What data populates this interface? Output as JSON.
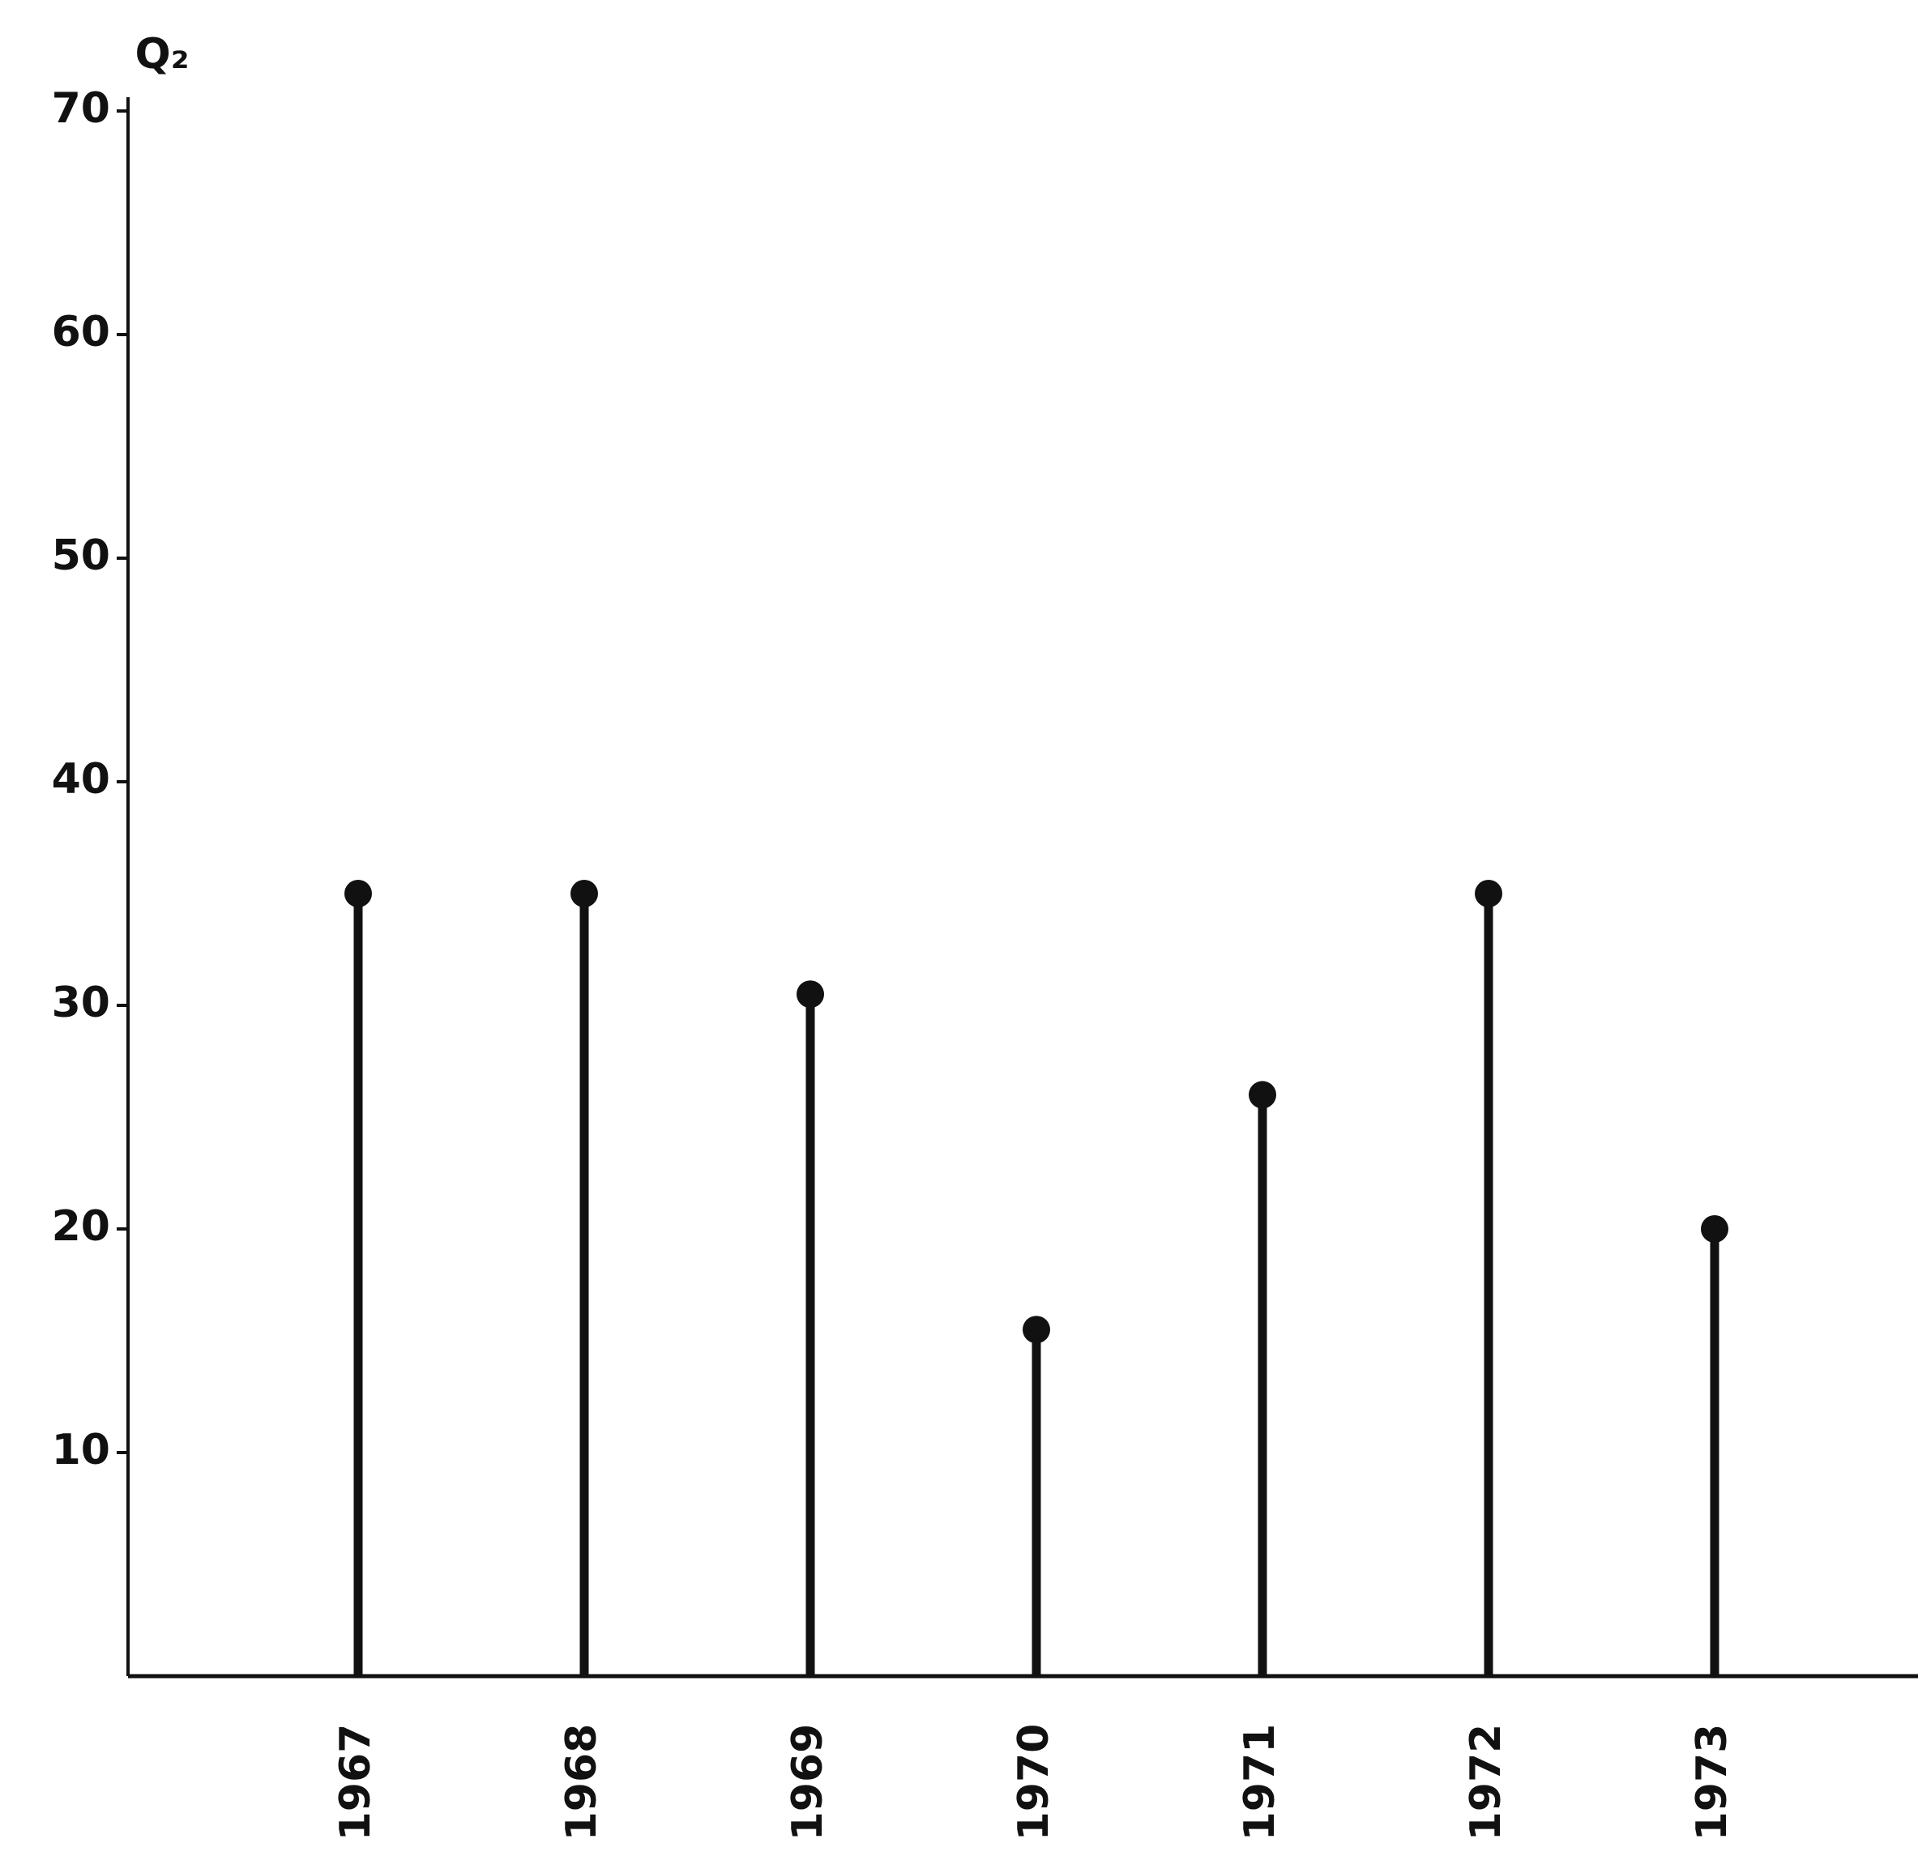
{
  "chart_data": {
    "type": "stem",
    "y_label": "Q₂",
    "categories": [
      "1967",
      "1968",
      "1969",
      "1970",
      "1971",
      "1972",
      "1973"
    ],
    "values": [
      35,
      35,
      30.5,
      15.5,
      26,
      35,
      20
    ],
    "color": "#111111",
    "ylim": [
      0,
      70
    ],
    "yticks": [
      10,
      20,
      30,
      40,
      50,
      60,
      70
    ],
    "grid": false
  }
}
